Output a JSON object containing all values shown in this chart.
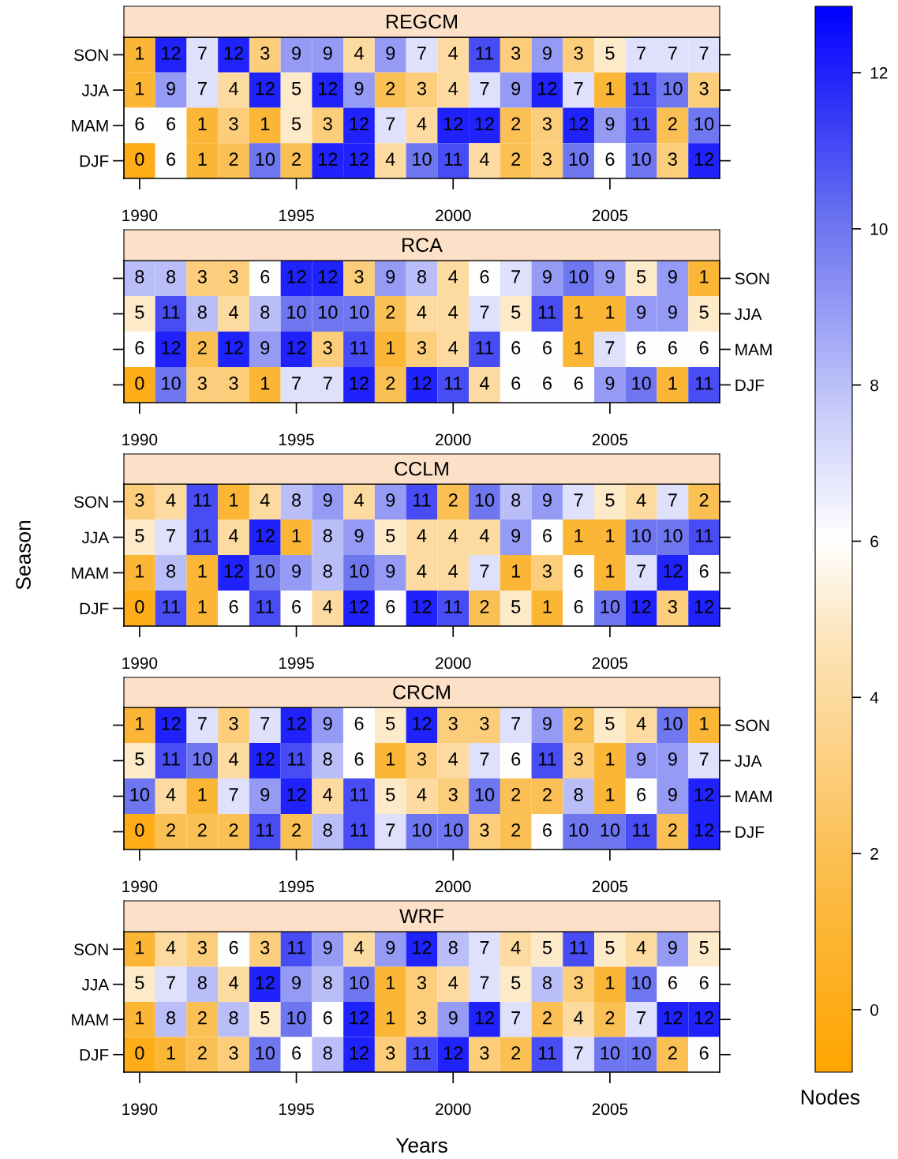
{
  "chart_data": [
    {
      "type": "heatmap",
      "title": "REGCM",
      "x": [
        1990,
        1991,
        1992,
        1993,
        1994,
        1995,
        1996,
        1997,
        1998,
        1999,
        2000,
        2001,
        2002,
        2003,
        2004,
        2005,
        2006,
        2007,
        2008
      ],
      "xlim": [
        1989.5,
        2008.5
      ],
      "xticks": [
        1990,
        1995,
        2000,
        2005
      ],
      "y_categories": [
        "SON",
        "JJA",
        "MAM",
        "DJF"
      ],
      "cells": [
        [
          1,
          12,
          7,
          12,
          3,
          9,
          9,
          4,
          9,
          7,
          4,
          11,
          3,
          9,
          3,
          5,
          7,
          7,
          7
        ],
        [
          1,
          9,
          7,
          4,
          12,
          5,
          12,
          9,
          2,
          3,
          4,
          7,
          9,
          12,
          7,
          1,
          11,
          10,
          3
        ],
        [
          6,
          6,
          1,
          3,
          1,
          5,
          3,
          12,
          7,
          4,
          12,
          12,
          2,
          3,
          12,
          9,
          11,
          2,
          10
        ],
        [
          0,
          6,
          1,
          2,
          10,
          2,
          12,
          12,
          4,
          10,
          11,
          4,
          2,
          3,
          10,
          6,
          10,
          3,
          12
        ]
      ],
      "clim": [
        -0.8,
        12.85
      ],
      "cticks": [
        0,
        2,
        4,
        6,
        8,
        10,
        12
      ],
      "clabel": "Nodes",
      "data_labels": true,
      "grid": false
    },
    {
      "type": "heatmap",
      "title": "RCA",
      "x": [
        1990,
        1991,
        1992,
        1993,
        1994,
        1995,
        1996,
        1997,
        1998,
        1999,
        2000,
        2001,
        2002,
        2003,
        2004,
        2005,
        2006,
        2007,
        2008
      ],
      "xlim": [
        1989.5,
        2008.5
      ],
      "xticks": [
        1990,
        1995,
        2000,
        2005
      ],
      "y_categories": [
        "SON",
        "JJA",
        "MAM",
        "DJF"
      ],
      "cells": [
        [
          8,
          8,
          3,
          3,
          6,
          12,
          12,
          3,
          9,
          8,
          4,
          6,
          7,
          9,
          10,
          9,
          5,
          9,
          1
        ],
        [
          5,
          11,
          8,
          4,
          8,
          10,
          10,
          10,
          2,
          4,
          4,
          7,
          5,
          11,
          1,
          1,
          9,
          9,
          5
        ],
        [
          6,
          12,
          2,
          12,
          9,
          12,
          3,
          11,
          1,
          3,
          4,
          11,
          6,
          6,
          1,
          7,
          6,
          6,
          6
        ],
        [
          0,
          10,
          3,
          3,
          1,
          7,
          7,
          12,
          2,
          12,
          11,
          4,
          6,
          6,
          6,
          9,
          10,
          1,
          11
        ]
      ],
      "data_labels": true,
      "grid": false
    },
    {
      "type": "heatmap",
      "title": "CCLM",
      "ylabel": "Season",
      "x": [
        1990,
        1991,
        1992,
        1993,
        1994,
        1995,
        1996,
        1997,
        1998,
        1999,
        2000,
        2001,
        2002,
        2003,
        2004,
        2005,
        2006,
        2007,
        2008
      ],
      "xlim": [
        1989.5,
        2008.5
      ],
      "xticks": [
        1990,
        1995,
        2000,
        2005
      ],
      "y_categories": [
        "SON",
        "JJA",
        "MAM",
        "DJF"
      ],
      "cells": [
        [
          3,
          4,
          11,
          1,
          4,
          8,
          9,
          4,
          9,
          11,
          2,
          10,
          8,
          9,
          7,
          5,
          4,
          7,
          2
        ],
        [
          5,
          7,
          11,
          4,
          12,
          1,
          8,
          9,
          5,
          4,
          4,
          4,
          9,
          6,
          1,
          1,
          10,
          10,
          11
        ],
        [
          1,
          8,
          1,
          12,
          10,
          9,
          8,
          10,
          9,
          4,
          4,
          7,
          1,
          3,
          6,
          1,
          7,
          12,
          6
        ],
        [
          0,
          11,
          1,
          6,
          11,
          6,
          4,
          12,
          6,
          12,
          11,
          2,
          5,
          1,
          6,
          10,
          12,
          3,
          12
        ]
      ],
      "data_labels": true,
      "grid": false
    },
    {
      "type": "heatmap",
      "title": "CRCM",
      "x": [
        1990,
        1991,
        1992,
        1993,
        1994,
        1995,
        1996,
        1997,
        1998,
        1999,
        2000,
        2001,
        2002,
        2003,
        2004,
        2005,
        2006,
        2007,
        2008
      ],
      "xlim": [
        1989.5,
        2008.5
      ],
      "xticks": [
        1990,
        1995,
        2000,
        2005
      ],
      "y_categories": [
        "SON",
        "JJA",
        "MAM",
        "DJF"
      ],
      "cells": [
        [
          1,
          12,
          7,
          3,
          7,
          12,
          9,
          6,
          5,
          12,
          3,
          3,
          7,
          9,
          2,
          5,
          4,
          10,
          1
        ],
        [
          5,
          11,
          10,
          4,
          12,
          11,
          8,
          6,
          1,
          3,
          4,
          7,
          6,
          11,
          3,
          1,
          9,
          9,
          7
        ],
        [
          10,
          4,
          1,
          7,
          9,
          12,
          4,
          11,
          5,
          4,
          3,
          10,
          2,
          2,
          8,
          1,
          6,
          9,
          12
        ],
        [
          0,
          2,
          2,
          2,
          11,
          2,
          8,
          11,
          7,
          10,
          10,
          3,
          2,
          6,
          10,
          10,
          11,
          2,
          12
        ]
      ],
      "data_labels": true,
      "grid": false
    },
    {
      "type": "heatmap",
      "title": "WRF",
      "xlabel": "Years",
      "x": [
        1990,
        1991,
        1992,
        1993,
        1994,
        1995,
        1996,
        1997,
        1998,
        1999,
        2000,
        2001,
        2002,
        2003,
        2004,
        2005,
        2006,
        2007,
        2008
      ],
      "xlim": [
        1989.5,
        2008.5
      ],
      "xticks": [
        1990,
        1995,
        2000,
        2005
      ],
      "y_categories": [
        "SON",
        "JJA",
        "MAM",
        "DJF"
      ],
      "cells": [
        [
          1,
          4,
          3,
          6,
          3,
          11,
          9,
          4,
          9,
          12,
          8,
          7,
          4,
          5,
          11,
          5,
          4,
          9,
          5
        ],
        [
          5,
          7,
          8,
          4,
          12,
          9,
          8,
          10,
          1,
          3,
          4,
          7,
          5,
          8,
          3,
          1,
          10,
          6,
          6
        ],
        [
          1,
          8,
          2,
          8,
          5,
          10,
          6,
          12,
          1,
          3,
          9,
          12,
          7,
          2,
          4,
          2,
          7,
          12,
          12
        ],
        [
          0,
          1,
          2,
          3,
          10,
          6,
          8,
          12,
          3,
          11,
          12,
          3,
          2,
          11,
          7,
          10,
          10,
          2,
          6
        ]
      ],
      "data_labels": true,
      "grid": false
    }
  ]
}
